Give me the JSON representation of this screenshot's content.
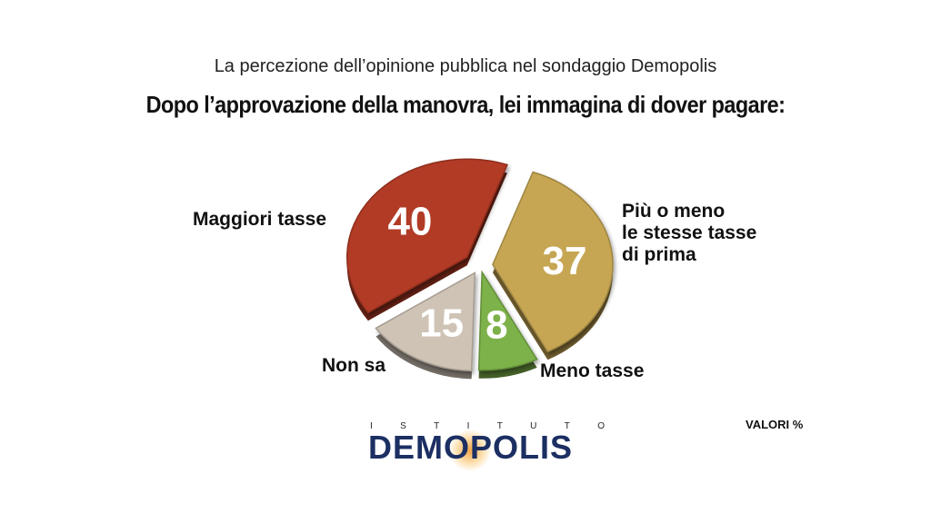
{
  "header": {
    "subtitle": "La percezione dell’opinione pubblica nel sondaggio Demopolis",
    "title": "Dopo l’approvazione della manovra, lei immagina di dover pagare:"
  },
  "chart_data": {
    "type": "pie",
    "unit_note": "VALORI %",
    "slices": [
      {
        "label": "Maggiori tasse",
        "value": 40,
        "color": "#b23a25"
      },
      {
        "label": "Più o meno le stesse tasse di prima",
        "label_lines": [
          "Più o meno",
          "le stesse tasse",
          "di prima"
        ],
        "value": 37,
        "color": "#c6a653"
      },
      {
        "label": "Meno tasse",
        "value": 8,
        "color": "#7db14a"
      },
      {
        "label": "Non sa",
        "value": 15,
        "color": "#cfc3b6"
      }
    ]
  },
  "logo": {
    "top_text": "ISTITUTO",
    "top_letters": [
      "I",
      "S",
      "T",
      "I",
      "T",
      "U",
      "T",
      "O"
    ],
    "main_text": "DEMOPOLIS"
  }
}
